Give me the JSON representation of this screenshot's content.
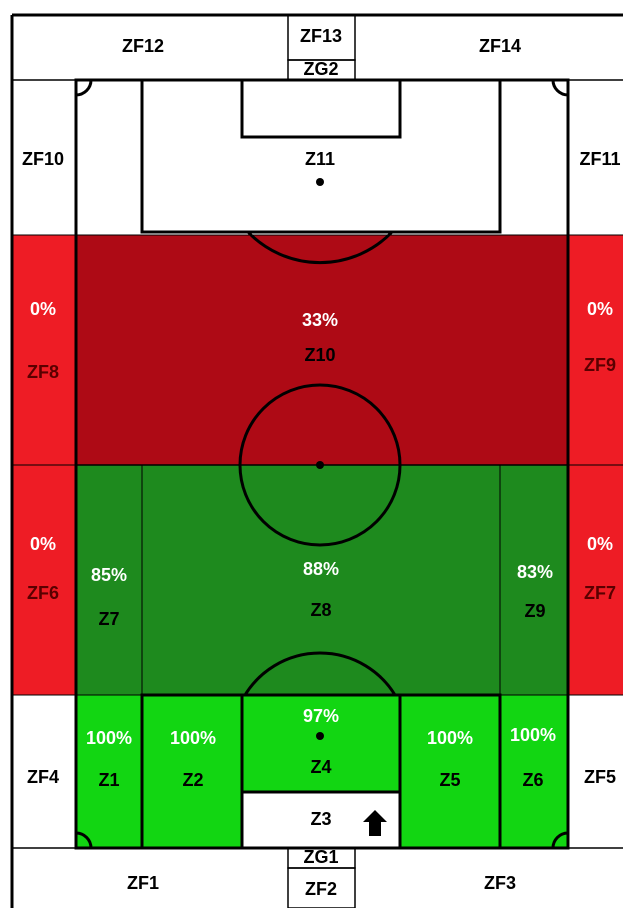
{
  "zones": [
    {
      "label": "ZF12"
    },
    {
      "label": "ZF13"
    },
    {
      "label": "ZG2"
    },
    {
      "label": "ZF14"
    },
    {
      "label": "ZF10"
    },
    {
      "label": "Z11"
    },
    {
      "label": "ZF11"
    },
    {
      "label": "ZF8",
      "pct": "0%"
    },
    {
      "label": "Z10",
      "pct": "33%"
    },
    {
      "label": "ZF9",
      "pct": "0%"
    },
    {
      "label": "ZF6",
      "pct": "0%"
    },
    {
      "label": "Z7",
      "pct": "85%"
    },
    {
      "label": "Z8",
      "pct": "88%"
    },
    {
      "label": "Z9",
      "pct": "83%"
    },
    {
      "label": "ZF7",
      "pct": "0%"
    },
    {
      "label": "ZF4"
    },
    {
      "label": "Z1",
      "pct": "100%"
    },
    {
      "label": "Z2",
      "pct": "100%"
    },
    {
      "label": "Z4",
      "pct": "97%"
    },
    {
      "label": "Z3"
    },
    {
      "label": "Z5",
      "pct": "100%"
    },
    {
      "label": "Z6",
      "pct": "100%"
    },
    {
      "label": "ZF5"
    },
    {
      "label": "ZF1"
    },
    {
      "label": "ZG1"
    },
    {
      "label": "ZF2"
    },
    {
      "label": "ZF3"
    }
  ]
}
